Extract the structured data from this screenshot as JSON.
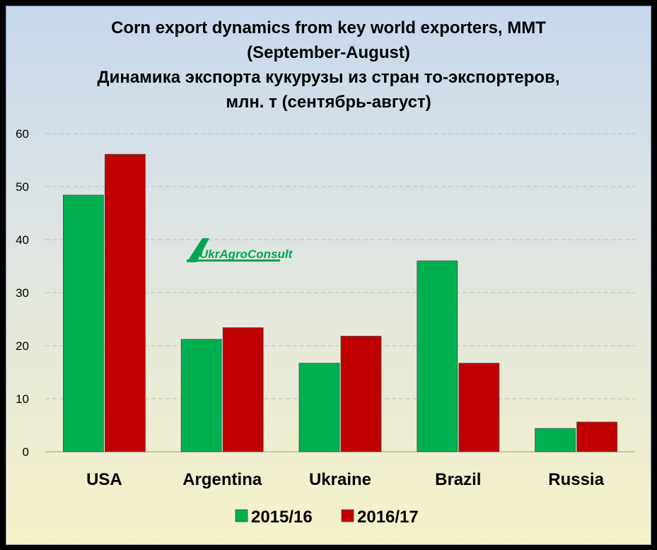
{
  "title_lines": [
    "Corn export dynamics from key world exporters, MMT",
    "(September-August)",
    "Динамика экспорта кукурузы из стран то-экспортеров,",
    "млн. т (сентябрь-август)"
  ],
  "logo_text": "UkrAgroConsult",
  "colors": {
    "series_2015": "#00b050",
    "series_2016": "#c00000"
  },
  "chart_data": {
    "type": "bar",
    "title": "Corn export dynamics from key world exporters, MMT (September-August) / Динамика экспорта кукурузы из стран то-экспортеров, млн. т (сентябрь-август)",
    "categories": [
      "USA",
      "Argentina",
      "Ukraine",
      "Brazil",
      "Russia"
    ],
    "series": [
      {
        "name": "2015/16",
        "color": "#00b050",
        "values": [
          48.4,
          21.2,
          16.7,
          36.0,
          4.4
        ]
      },
      {
        "name": "2016/17",
        "color": "#c00000",
        "values": [
          56.1,
          23.4,
          21.8,
          16.7,
          5.6
        ]
      }
    ],
    "ylim": [
      0,
      60
    ],
    "yticks": [
      0,
      10,
      20,
      30,
      40,
      50,
      60
    ],
    "grid": true,
    "legend": "bottom"
  }
}
